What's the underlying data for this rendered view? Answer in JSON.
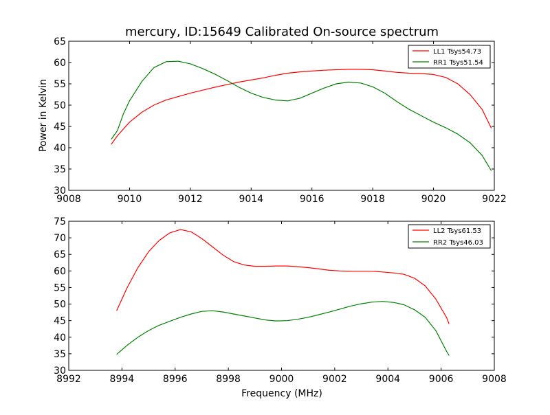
{
  "figure": {
    "title": "mercury, ID:15649 Calibrated On-source spectrum"
  },
  "chart_data": [
    {
      "type": "line",
      "title": "mercury, ID:15649 Calibrated On-source spectrum",
      "xlabel": "",
      "ylabel": "Power in Kelvin",
      "xlim": [
        9008,
        9022
      ],
      "ylim": [
        30,
        65
      ],
      "xticks": [
        9008,
        9010,
        9012,
        9014,
        9016,
        9018,
        9020,
        9022
      ],
      "yticks": [
        30,
        35,
        40,
        45,
        50,
        55,
        60,
        65
      ],
      "grid": false,
      "legend_position": "top-right",
      "series": [
        {
          "name": "LL1 Tsys54.73",
          "color": "#ff0000",
          "points": [
            [
              9009.4,
              40.8
            ],
            [
              9009.6,
              42.8
            ],
            [
              9010.0,
              46.0
            ],
            [
              9010.4,
              48.3
            ],
            [
              9010.8,
              50.0
            ],
            [
              9011.2,
              51.2
            ],
            [
              9011.6,
              52.0
            ],
            [
              9012.0,
              52.8
            ],
            [
              9012.4,
              53.5
            ],
            [
              9012.8,
              54.2
            ],
            [
              9013.2,
              54.8
            ],
            [
              9013.6,
              55.4
            ],
            [
              9014.0,
              55.9
            ],
            [
              9014.4,
              56.4
            ],
            [
              9014.8,
              57.0
            ],
            [
              9015.2,
              57.5
            ],
            [
              9015.6,
              57.8
            ],
            [
              9016.0,
              58.0
            ],
            [
              9016.4,
              58.2
            ],
            [
              9016.8,
              58.3
            ],
            [
              9017.2,
              58.4
            ],
            [
              9017.6,
              58.4
            ],
            [
              9018.0,
              58.3
            ],
            [
              9018.4,
              58.0
            ],
            [
              9018.8,
              57.7
            ],
            [
              9019.2,
              57.5
            ],
            [
              9019.6,
              57.4
            ],
            [
              9020.0,
              57.2
            ],
            [
              9020.4,
              56.5
            ],
            [
              9020.8,
              55.0
            ],
            [
              9021.2,
              52.5
            ],
            [
              9021.6,
              49.0
            ],
            [
              9021.9,
              44.6
            ]
          ]
        },
        {
          "name": "RR1 Tsys51.54",
          "color": "#008000",
          "points": [
            [
              9009.4,
              42.0
            ],
            [
              9009.6,
              44.0
            ],
            [
              9009.8,
              48.0
            ],
            [
              9010.0,
              51.0
            ],
            [
              9010.4,
              55.5
            ],
            [
              9010.8,
              58.8
            ],
            [
              9011.2,
              60.2
            ],
            [
              9011.6,
              60.3
            ],
            [
              9012.0,
              59.7
            ],
            [
              9012.4,
              58.6
            ],
            [
              9012.8,
              57.3
            ],
            [
              9013.2,
              55.8
            ],
            [
              9013.6,
              54.2
            ],
            [
              9014.0,
              52.8
            ],
            [
              9014.4,
              51.8
            ],
            [
              9014.8,
              51.2
            ],
            [
              9015.2,
              51.0
            ],
            [
              9015.6,
              51.6
            ],
            [
              9016.0,
              52.8
            ],
            [
              9016.4,
              54.0
            ],
            [
              9016.8,
              55.0
            ],
            [
              9017.2,
              55.4
            ],
            [
              9017.6,
              55.2
            ],
            [
              9018.0,
              54.3
            ],
            [
              9018.4,
              52.8
            ],
            [
              9018.8,
              50.8
            ],
            [
              9019.2,
              49.0
            ],
            [
              9019.6,
              47.5
            ],
            [
              9020.0,
              46.0
            ],
            [
              9020.4,
              44.7
            ],
            [
              9020.8,
              43.2
            ],
            [
              9021.2,
              41.2
            ],
            [
              9021.6,
              38.2
            ],
            [
              9021.9,
              34.6
            ]
          ]
        }
      ]
    },
    {
      "type": "line",
      "title": "",
      "xlabel": "Frequency (MHz)",
      "ylabel": "",
      "xlim": [
        8992,
        9008
      ],
      "ylim": [
        30,
        75
      ],
      "xticks": [
        8992,
        8994,
        8996,
        8998,
        9000,
        9002,
        9004,
        9006,
        9008
      ],
      "yticks": [
        30,
        35,
        40,
        45,
        50,
        55,
        60,
        65,
        70,
        75
      ],
      "grid": false,
      "legend_position": "top-right",
      "series": [
        {
          "name": "LL2 Tsys61.53",
          "color": "#ff0000",
          "points": [
            [
              8993.8,
              48.0
            ],
            [
              8994.2,
              55.0
            ],
            [
              8994.6,
              61.0
            ],
            [
              8995.0,
              65.8
            ],
            [
              8995.4,
              69.2
            ],
            [
              8995.8,
              71.5
            ],
            [
              8996.2,
              72.5
            ],
            [
              8996.6,
              71.8
            ],
            [
              8997.0,
              69.8
            ],
            [
              8997.4,
              67.3
            ],
            [
              8997.8,
              64.8
            ],
            [
              8998.2,
              62.8
            ],
            [
              8998.6,
              61.8
            ],
            [
              8999.0,
              61.4
            ],
            [
              8999.4,
              61.4
            ],
            [
              8999.8,
              61.5
            ],
            [
              9000.2,
              61.5
            ],
            [
              9000.6,
              61.3
            ],
            [
              9001.0,
              61.0
            ],
            [
              9001.4,
              60.6
            ],
            [
              9001.8,
              60.2
            ],
            [
              9002.2,
              60.0
            ],
            [
              9002.6,
              59.9
            ],
            [
              9003.0,
              59.9
            ],
            [
              9003.4,
              59.9
            ],
            [
              9003.8,
              59.7
            ],
            [
              9004.2,
              59.4
            ],
            [
              9004.6,
              59.0
            ],
            [
              9005.0,
              57.8
            ],
            [
              9005.4,
              55.5
            ],
            [
              9005.8,
              51.5
            ],
            [
              9006.2,
              46.0
            ],
            [
              9006.3,
              44.0
            ]
          ]
        },
        {
          "name": "RR2 Tsys46.03",
          "color": "#008000",
          "points": [
            [
              8993.8,
              34.8
            ],
            [
              8994.2,
              37.6
            ],
            [
              8994.6,
              40.0
            ],
            [
              8995.0,
              42.0
            ],
            [
              8995.4,
              43.6
            ],
            [
              8995.8,
              44.8
            ],
            [
              8996.2,
              46.0
            ],
            [
              8996.6,
              47.0
            ],
            [
              8997.0,
              47.8
            ],
            [
              8997.4,
              48.0
            ],
            [
              8997.8,
              47.6
            ],
            [
              8998.2,
              47.0
            ],
            [
              8998.6,
              46.4
            ],
            [
              8999.0,
              45.8
            ],
            [
              8999.4,
              45.2
            ],
            [
              8999.8,
              44.9
            ],
            [
              9000.2,
              45.0
            ],
            [
              9000.6,
              45.4
            ],
            [
              9001.0,
              46.0
            ],
            [
              9001.4,
              46.8
            ],
            [
              9001.8,
              47.6
            ],
            [
              9002.2,
              48.5
            ],
            [
              9002.6,
              49.4
            ],
            [
              9003.0,
              50.1
            ],
            [
              9003.4,
              50.6
            ],
            [
              9003.8,
              50.8
            ],
            [
              9004.2,
              50.5
            ],
            [
              9004.6,
              49.8
            ],
            [
              9005.0,
              48.3
            ],
            [
              9005.4,
              46.0
            ],
            [
              9005.8,
              42.0
            ],
            [
              9006.2,
              35.8
            ],
            [
              9006.3,
              34.5
            ]
          ]
        }
      ]
    }
  ]
}
